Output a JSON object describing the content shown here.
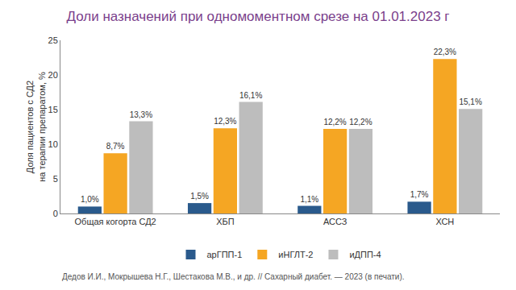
{
  "chart_data": {
    "type": "bar",
    "title": "Доли назначений при одномоментном срезе на 01.01.2023 г",
    "y_label": "Доля пациентов с СД2\nна терапии препаратом, %",
    "categories": [
      "Общая когорта СД2",
      "ХБП",
      "АССЗ",
      "ХСН"
    ],
    "series": [
      {
        "name": "арГПП-1",
        "color": "#2a5a8c",
        "values": [
          1.0,
          1.5,
          1.1,
          1.7
        ],
        "value_labels": [
          "1,0%",
          "1,5%",
          "1,1%",
          "1,7%"
        ]
      },
      {
        "name": "иНГЛТ-2",
        "color": "#f5a623",
        "values": [
          8.7,
          12.3,
          12.2,
          22.3
        ],
        "value_labels": [
          "8,7%",
          "12,3%",
          "12,2%",
          "22,3%"
        ]
      },
      {
        "name": "иДПП-4",
        "color": "#bdbdbd",
        "values": [
          13.3,
          16.1,
          12.2,
          15.1
        ],
        "value_labels": [
          "13,3%",
          "16,1%",
          "12,2%",
          "15,1%"
        ]
      }
    ],
    "ylim": [
      0,
      25
    ],
    "yticks": [
      0,
      5,
      10,
      15,
      20,
      25
    ],
    "grid": false,
    "legend": "bottom",
    "data_labels": true,
    "source": "Дедов И.И., Мокрышева Н.Г., Шестакова М.В., и др. // Сахарный диабет. — 2023 (в печати)."
  }
}
